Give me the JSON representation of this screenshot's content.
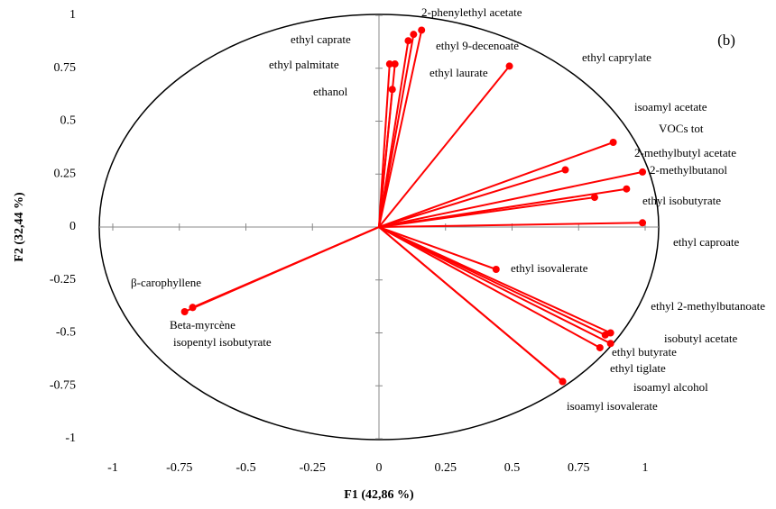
{
  "chart_data": {
    "type": "biplot",
    "title": "(b)",
    "x_label": "F1 (42,86 %)",
    "y_label": "F2 (32,44 %)",
    "xlim": [
      -1,
      1
    ],
    "ylim": [
      -1,
      1
    ],
    "xticks": [
      -1,
      -0.75,
      -0.5,
      -0.25,
      0,
      0.25,
      0.5,
      0.75,
      1
    ],
    "yticks": [
      -1,
      -0.75,
      -0.5,
      -0.25,
      0,
      0.25,
      0.5,
      0.75,
      1
    ],
    "color": "#ff0000",
    "points": [
      {
        "label": "2-phenylethyl acetate",
        "x": 0.16,
        "y": 0.93
      },
      {
        "label": "ethyl 9-decenoate",
        "x": 0.13,
        "y": 0.91
      },
      {
        "label": "ethyl caprate",
        "x": 0.11,
        "y": 0.88
      },
      {
        "label": "ethyl palmitate",
        "x": 0.06,
        "y": 0.77
      },
      {
        "label": "ethyl laurate",
        "x": 0.04,
        "y": 0.77
      },
      {
        "label": "ethanol",
        "x": 0.05,
        "y": 0.65
      },
      {
        "label": "ethyl caprylate",
        "x": 0.49,
        "y": 0.76
      },
      {
        "label": "isoamyl acetate",
        "x": 0.88,
        "y": 0.4
      },
      {
        "label": "VOCs tot",
        "x": 0.7,
        "y": 0.27
      },
      {
        "label": "2-methylbutyl acetate",
        "x": 0.99,
        "y": 0.26
      },
      {
        "label": "2-methylbutanol",
        "x": 0.93,
        "y": 0.18
      },
      {
        "label": "ethyl isobutyrate",
        "x": 0.81,
        "y": 0.14
      },
      {
        "label": "ethyl caproate",
        "x": 0.99,
        "y": 0.02
      },
      {
        "label": "ethyl isovalerate",
        "x": 0.44,
        "y": -0.2
      },
      {
        "label": "ethyl 2-methylbutanoate",
        "x": 0.85,
        "y": -0.51
      },
      {
        "label": "isobutyl acetate",
        "x": 0.87,
        "y": -0.5
      },
      {
        "label": "ethyl butyrate",
        "x": 0.87,
        "y": -0.55
      },
      {
        "label": "ethyl tiglate",
        "x": 0.83,
        "y": -0.57
      },
      {
        "label": "isoamyl alcohol",
        "x": 0.69,
        "y": -0.73
      },
      {
        "label": "isoamyl isovalerate",
        "x": 0.69,
        "y": -0.73
      },
      {
        "label": "β-carophyllene",
        "x": -0.7,
        "y": -0.38
      },
      {
        "label": "Beta-myrcène",
        "x": -0.73,
        "y": -0.4
      },
      {
        "label": "isopentyl isobutyrate",
        "x": -0.7,
        "y": -0.38
      }
    ]
  }
}
